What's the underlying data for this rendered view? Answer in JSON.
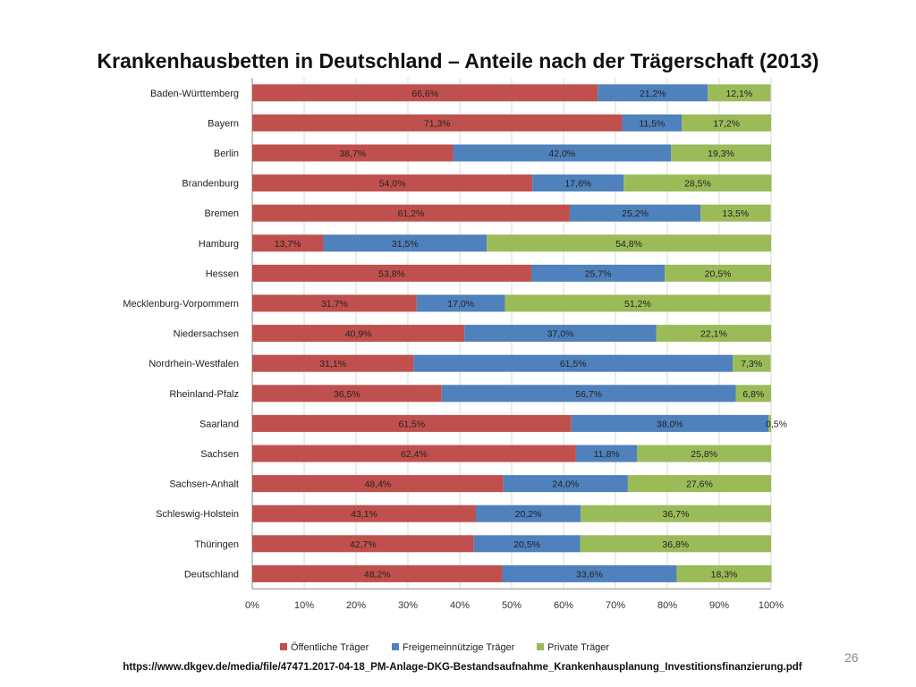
{
  "page": {
    "title": "Krankenhausbetten in Deutschland – Anteile nach der Trägerschaft (2013)",
    "source_url": "https://www.dkgev.de/media/file/47471.2017-04-18_PM-Anlage-DKG-Bestandsaufnahme_Krankenhausplanung_Investitionsfinanzierung.pdf",
    "page_number": "26"
  },
  "chart_data": {
    "type": "bar",
    "orientation": "horizontal",
    "stacked": "percent",
    "title": "Krankenhausbetten in Deutschland – Anteile nach der Trägerschaft (2013)",
    "categories": [
      "Baden-Württemberg",
      "Bayern",
      "Berlin",
      "Brandenburg",
      "Bremen",
      "Hamburg",
      "Hessen",
      "Mecklenburg-Vorpommern",
      "Niedersachsen",
      "Nordrhein-Westfalen",
      "Rheinland-Pfalz",
      "Saarland",
      "Sachsen",
      "Sachsen-Anhalt",
      "Schleswig-Holstein",
      "Thüringen",
      "Deutschland"
    ],
    "series": [
      {
        "name": "Öffentliche Träger",
        "color": "#c0504d",
        "values": [
          66.6,
          71.3,
          38.7,
          54.0,
          61.2,
          13.7,
          53.8,
          31.7,
          40.9,
          31.1,
          36.5,
          61.5,
          62.4,
          48.4,
          43.1,
          42.7,
          48.2
        ],
        "labels": [
          "66,6%",
          "71,3%",
          "38,7%",
          "54,0%",
          "61,2%",
          "13,7%",
          "53,8%",
          "31,7%",
          "40,9%",
          "31,1%",
          "36,5%",
          "61,5%",
          "62,4%",
          "48,4%",
          "43,1%",
          "42,7%",
          "48,2%"
        ]
      },
      {
        "name": "Freigemeinnützige Träger",
        "color": "#4f81bd",
        "values": [
          21.2,
          11.5,
          42.0,
          17.6,
          25.2,
          31.5,
          25.7,
          17.0,
          37.0,
          61.5,
          56.7,
          38.0,
          11.8,
          24.0,
          20.2,
          20.5,
          33.6
        ],
        "labels": [
          "21,2%",
          "11,5%",
          "42,0%",
          "17,6%",
          "25,2%",
          "31,5%",
          "25,7%",
          "17,0%",
          "37,0%",
          "61,5%",
          "56,7%",
          "38,0%",
          "11,8%",
          "24,0%",
          "20,2%",
          "20,5%",
          "33,6%"
        ]
      },
      {
        "name": "Private Träger",
        "color": "#9bbb59",
        "values": [
          12.1,
          17.2,
          19.3,
          28.5,
          13.5,
          54.8,
          20.5,
          51.2,
          22.1,
          7.3,
          6.8,
          0.5,
          25.8,
          27.6,
          36.7,
          36.8,
          18.3
        ],
        "labels": [
          "12,1%",
          "17,2%",
          "19,3%",
          "28,5%",
          "13,5%",
          "54,8%",
          "20,5%",
          "51,2%",
          "22,1%",
          "7,3%",
          "6,8%",
          "0,5%",
          "25,8%",
          "27,6%",
          "36,7%",
          "36,8%",
          "18,3%"
        ]
      }
    ],
    "x_ticks": [
      "0%",
      "10%",
      "20%",
      "30%",
      "40%",
      "50%",
      "60%",
      "70%",
      "80%",
      "90%",
      "100%"
    ],
    "xlim": [
      0,
      100
    ],
    "xlabel": "",
    "ylabel": "",
    "grid": "vertical",
    "legend_position": "bottom"
  }
}
